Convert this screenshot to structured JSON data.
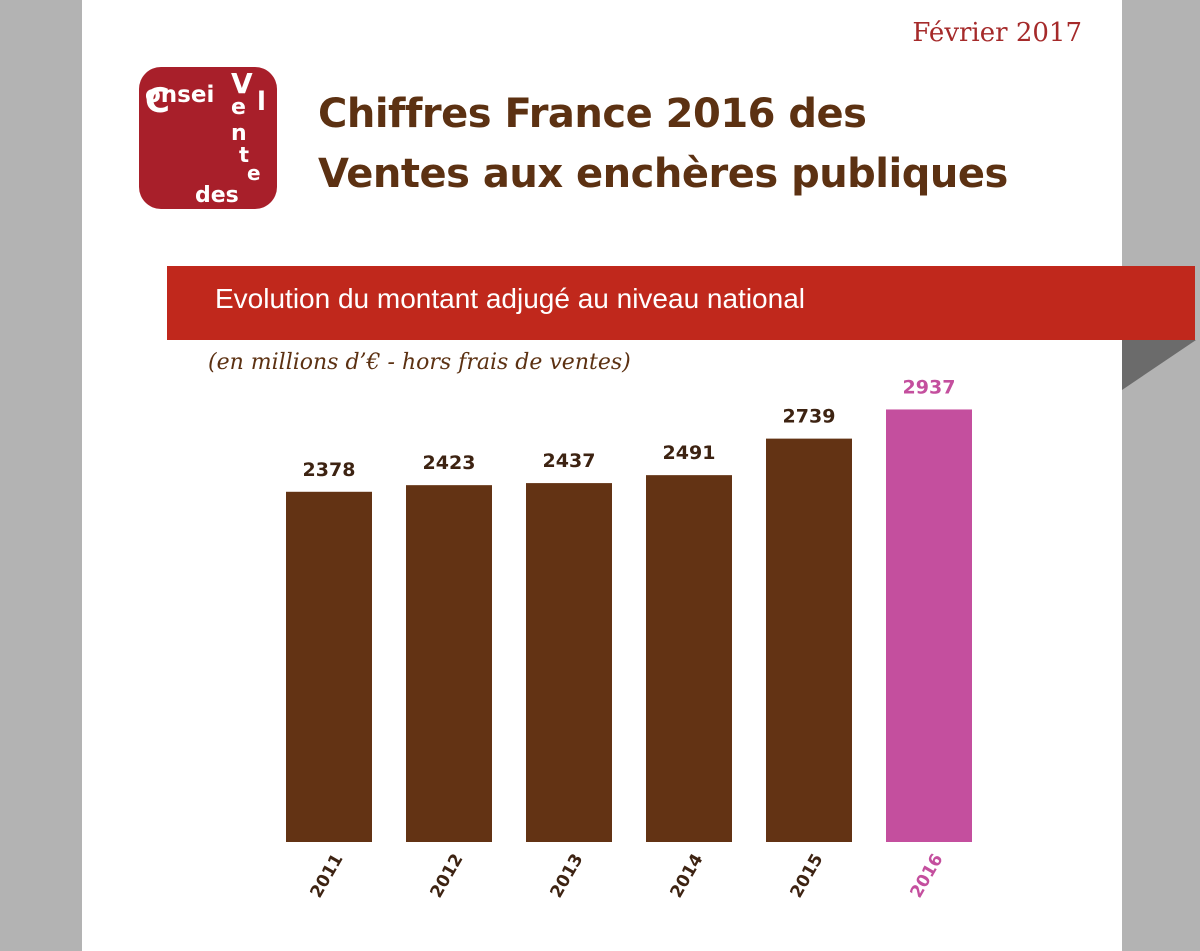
{
  "header": {
    "date": "Février 2017",
    "title_line1": "Chiffres France 2016 des",
    "title_line2": "Ventes aux enchères publiques"
  },
  "logo": {
    "brand": "Conseil des Ventes"
  },
  "banner": {
    "text": "Evolution du montant adjugé au niveau national"
  },
  "subtitle": "(en millions d’€ - hors frais de ventes)",
  "colors": {
    "brown": "#633314",
    "highlight": "#c44f9e",
    "banner_red": "#c0281c",
    "logo_red": "#a81f2a",
    "date_red": "#a52a2a"
  },
  "chart_data": {
    "type": "bar",
    "title": "Evolution du montant adjugé au niveau national",
    "ylabel": "",
    "xlabel": "",
    "categories": [
      "2011",
      "2012",
      "2013",
      "2014",
      "2015",
      "2016"
    ],
    "values": [
      2378,
      2423,
      2437,
      2491,
      2739,
      2937
    ],
    "highlight_index": 5,
    "data_labels": true,
    "grid": false,
    "ylim": [
      0,
      3300
    ]
  }
}
